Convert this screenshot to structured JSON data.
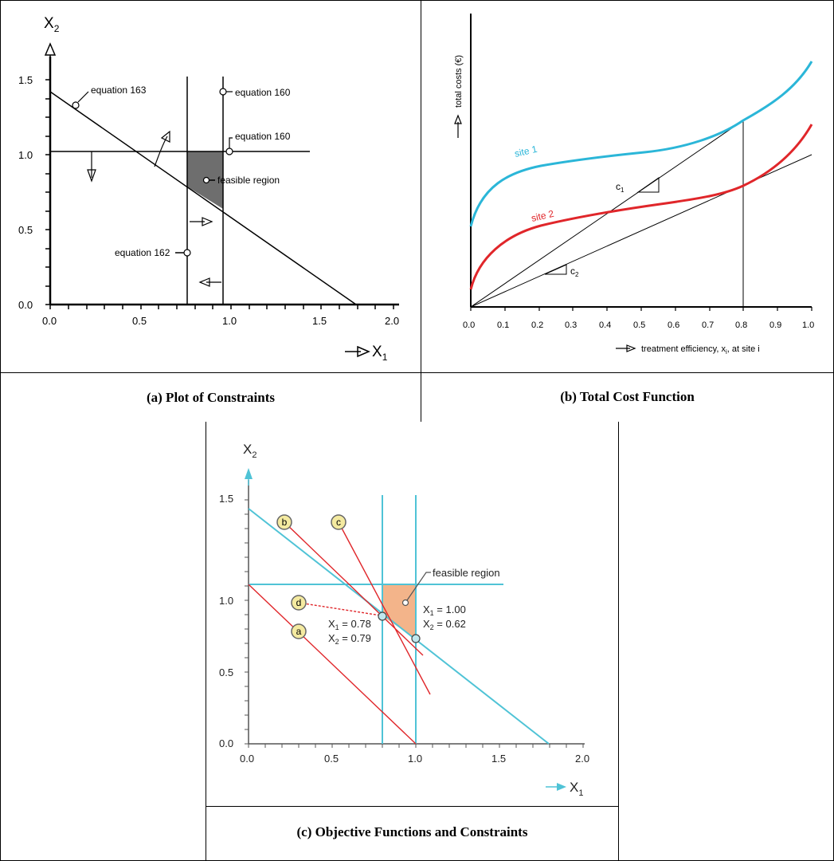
{
  "figure_a": {
    "caption": "(a) Plot of Constraints",
    "x_axis_label": "X",
    "x_axis_sub": "1",
    "y_axis_label": "X",
    "y_axis_sub": "2",
    "x_ticks": [
      "0.0",
      "0.5",
      "1.0",
      "1.5",
      "2.0"
    ],
    "y_ticks": [
      "0.0",
      "0.5",
      "1.0",
      "1.5"
    ],
    "annotations": {
      "eq163": "equation 163",
      "eq160_top": "equation 160",
      "eq160_mid": "equation 160",
      "feasible": "feasible region",
      "eq162": "equation 162"
    },
    "feasible_color": "#6e6e6e"
  },
  "figure_b": {
    "caption": "(b) Total Cost Function",
    "y_axis_label": "total costs (€)",
    "x_axis_label": "treatment efficiency, x",
    "x_axis_sub": "i",
    "x_axis_suffix": ", at site i",
    "x_ticks": [
      "0.0",
      "0.1",
      "0.2",
      "0.3",
      "0.4",
      "0.5",
      "0.6",
      "0.7",
      "0.8",
      "0.9",
      "1.0"
    ],
    "series_labels": {
      "site1": "site 1",
      "site2": "site 2"
    },
    "slope_labels": {
      "c1": "c",
      "c1_sub": "1",
      "c2": "c",
      "c2_sub": "2"
    },
    "colors": {
      "site1": "#2bb6d8",
      "site2": "#e0262a"
    }
  },
  "figure_c": {
    "caption": "(c) Objective Functions and Constraints",
    "x_axis_label": "X",
    "x_axis_sub": "1",
    "y_axis_label": "X",
    "y_axis_sub": "2",
    "x_ticks": [
      "0.0",
      "0.5",
      "1.0",
      "1.5",
      "2.0"
    ],
    "y_ticks": [
      "0.0",
      "0.5",
      "1.0",
      "1.5"
    ],
    "line_markers": [
      "b",
      "c",
      "d",
      "a"
    ],
    "feasible_label": "feasible region",
    "point1": {
      "x1": "X",
      "x1_sub": "1",
      "x1_val": " = 0.78",
      "x2": "X",
      "x2_sub": "2",
      "x2_val": " = 0.79"
    },
    "point2": {
      "x1": "X",
      "x1_sub": "1",
      "x1_val": " = 1.00",
      "x2": "X",
      "x2_sub": "2",
      "x2_val": " = 0.62"
    },
    "colors": {
      "constraint": "#4fc3d6",
      "objective": "#e0262a",
      "feasible": "#f3b48a",
      "marker_fill": "#f4eaa0"
    }
  }
}
